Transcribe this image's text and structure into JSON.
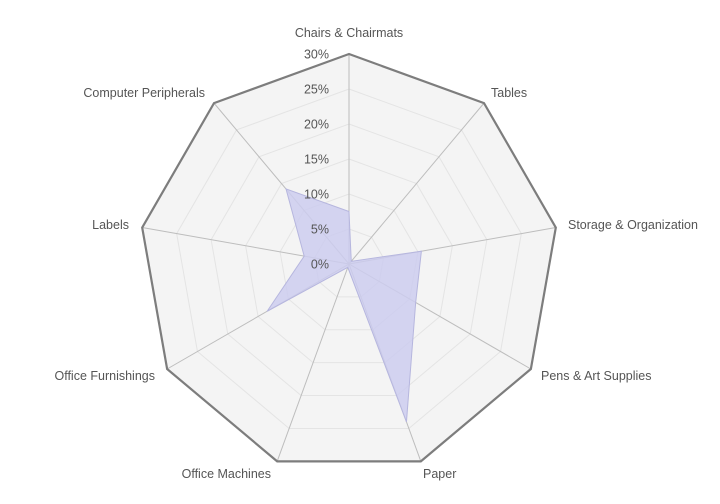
{
  "chart_data": {
    "type": "radar",
    "title": "",
    "categories": [
      "Chairs & Chairmats",
      "Tables",
      "Storage & Organization",
      "Pens & Art Supplies",
      "Paper",
      "Office Machines",
      "Office Furnishings",
      "Labels",
      "Computer Peripherals"
    ],
    "series": [
      {
        "values": [
          7.5,
          0.5,
          10.5,
          11.0,
          24.0,
          0.5,
          13.5,
          6.5,
          14.0
        ]
      }
    ],
    "rlim": [
      0,
      30
    ],
    "ticks": [
      "0%",
      "5%",
      "10%",
      "15%",
      "20%",
      "25%",
      "30%"
    ],
    "tick_values": [
      0,
      5,
      10,
      15,
      20,
      25,
      30
    ],
    "grid": true,
    "legend": "none",
    "colors": {
      "grid": "#e4e4e4",
      "spokes": "#bdbdbd",
      "outer": "#7d7d7d",
      "plot_bg": "#f4f4f4",
      "series_fill": "#ccccee",
      "series_stroke": "#b6b6de"
    }
  }
}
